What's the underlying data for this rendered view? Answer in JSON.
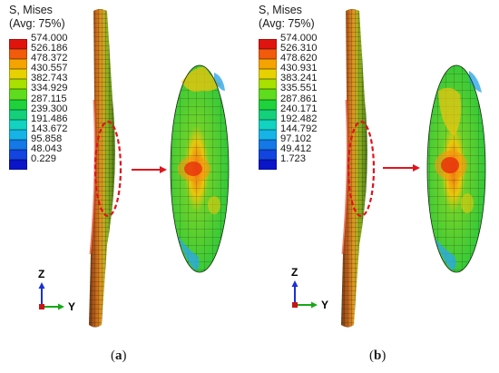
{
  "panels": [
    {
      "id": "a",
      "legend": {
        "title_line1": "S, Mises",
        "title_line2": "(Avg: 75%)",
        "values": [
          "574.000",
          "526.186",
          "478.372",
          "430.557",
          "382.743",
          "334.929",
          "287.115",
          "239.300",
          "191.486",
          "143.672",
          "95.858",
          "48.043",
          "0.229"
        ]
      },
      "caption_letter": "a",
      "axis_z": "Z",
      "axis_y": "Y"
    },
    {
      "id": "b",
      "legend": {
        "title_line1": "S, Mises",
        "title_line2": "(Avg: 75%)",
        "values": [
          "574.000",
          "526.310",
          "478.620",
          "430.931",
          "383.241",
          "335.551",
          "287.861",
          "240.171",
          "192.482",
          "144.792",
          "97.102",
          "49.412",
          "1.723"
        ]
      },
      "caption_letter": "b",
      "axis_z": "Z",
      "axis_y": "Y"
    }
  ],
  "legend_colors": [
    "#e0140f",
    "#f25a0c",
    "#f5a300",
    "#e8d100",
    "#a8e000",
    "#5fdc1e",
    "#1ed23c",
    "#14d07a",
    "#12d2c0",
    "#16b4e6",
    "#1478e6",
    "#1245e0",
    "#0a14c8"
  ],
  "icons": {
    "arrow": "red-arrow-icon",
    "triad": "coordinate-triad-icon"
  }
}
